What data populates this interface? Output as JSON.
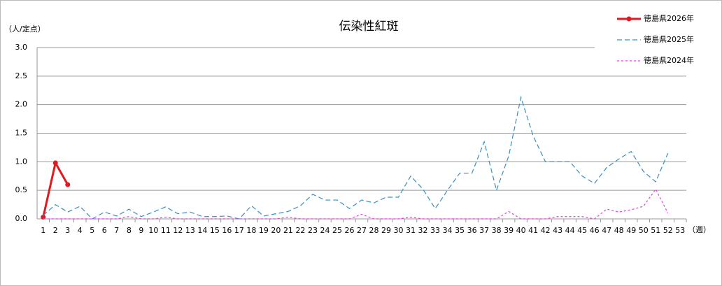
{
  "chart_data": {
    "type": "line",
    "title": "伝染性紅斑",
    "y_unit": "（人/定点）",
    "x_unit": "（週）",
    "categories": [
      "1",
      "2",
      "3",
      "4",
      "5",
      "6",
      "7",
      "8",
      "9",
      "10",
      "11",
      "12",
      "13",
      "14",
      "15",
      "16",
      "17",
      "18",
      "19",
      "20",
      "21",
      "22",
      "23",
      "24",
      "25",
      "26",
      "27",
      "28",
      "29",
      "30",
      "31",
      "32",
      "33",
      "34",
      "35",
      "36",
      "37",
      "38",
      "39",
      "40",
      "41",
      "42",
      "43",
      "44",
      "45",
      "46",
      "47",
      "48",
      "49",
      "50",
      "51",
      "52",
      "53"
    ],
    "ylim": [
      0,
      3
    ],
    "yticks": [
      {
        "value": 0,
        "label": "0.0"
      },
      0.5,
      {
        "value": 1,
        "label": "1.0"
      },
      1.5,
      {
        "value": 2,
        "label": "2.0"
      },
      2.5,
      {
        "value": 3,
        "label": "3.0"
      }
    ],
    "grid": true,
    "legend": "top-right",
    "series": [
      {
        "name": "徳島県2026年",
        "color": "#e0191e",
        "line_style": "solid",
        "markers": true,
        "values": [
          0.03,
          0.98,
          0.6,
          null,
          null,
          null,
          null,
          null,
          null,
          null,
          null,
          null,
          null,
          null,
          null,
          null,
          null,
          null,
          null,
          null,
          null,
          null,
          null,
          null,
          null,
          null,
          null,
          null,
          null,
          null,
          null,
          null,
          null,
          null,
          null,
          null,
          null,
          null,
          null,
          null,
          null,
          null,
          null,
          null,
          null,
          null,
          null,
          null,
          null,
          null,
          null,
          null,
          null
        ]
      },
      {
        "name": "徳島県2025年",
        "color": "#3a8fc0",
        "line_style": "dashed",
        "markers": false,
        "values": [
          0.06,
          0.25,
          0.12,
          0.22,
          0.0,
          0.12,
          0.05,
          0.17,
          0.04,
          0.12,
          0.21,
          0.09,
          0.12,
          0.04,
          0.04,
          0.05,
          0.0,
          0.23,
          0.05,
          0.09,
          0.13,
          0.23,
          0.43,
          0.33,
          0.33,
          0.18,
          0.33,
          0.28,
          0.38,
          0.38,
          0.75,
          0.52,
          0.18,
          0.5,
          0.8,
          0.8,
          1.35,
          0.5,
          1.1,
          2.13,
          1.45,
          1.0,
          1.0,
          1.0,
          0.75,
          0.62,
          0.9,
          1.05,
          1.18,
          0.83,
          0.65,
          1.15,
          null
        ]
      },
      {
        "name": "徳島県2024年",
        "color": "#e040e0",
        "line_style": "dotted",
        "markers": false,
        "values": [
          0,
          0,
          0,
          0,
          0,
          0,
          0,
          0.04,
          0,
          0,
          0.03,
          0,
          0,
          0,
          0,
          0,
          0,
          0,
          0,
          0,
          0.03,
          0,
          0,
          0,
          0,
          0,
          0.08,
          0,
          0,
          0,
          0.03,
          0,
          0,
          0,
          0,
          0,
          0,
          0,
          0.13,
          0,
          0,
          0,
          0.04,
          0.04,
          0.04,
          0,
          0.17,
          0.12,
          0.16,
          0.22,
          0.52,
          0.1,
          null
        ]
      }
    ]
  }
}
